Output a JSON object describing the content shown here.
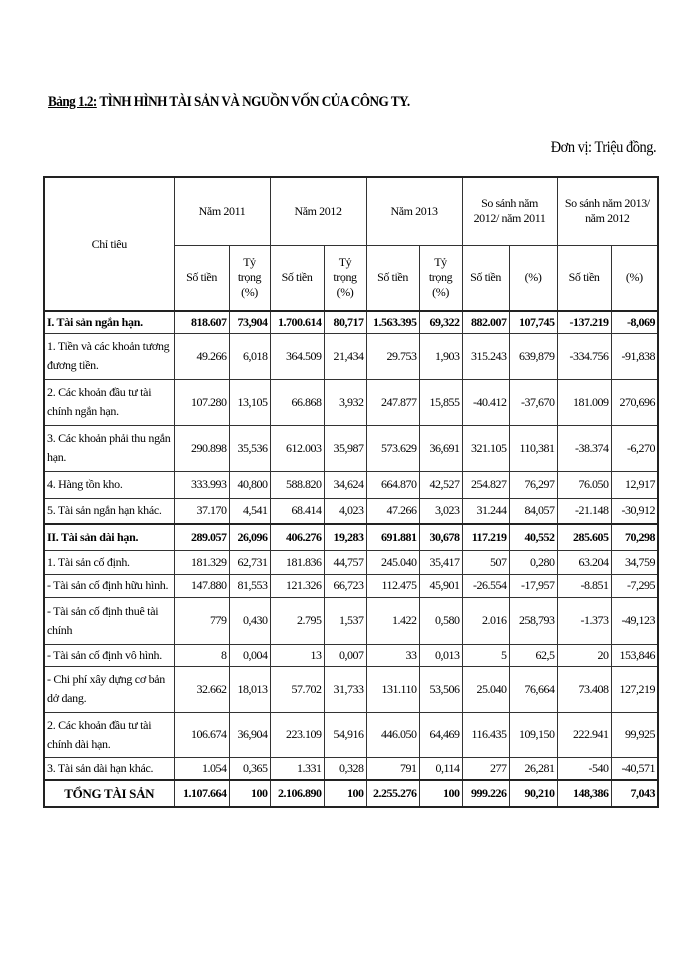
{
  "title": {
    "prefix": "Bảng 1.2:",
    "text": " TÌNH HÌNH TÀI SẢN VÀ NGUỒN VỐN CỦA CÔNG TY."
  },
  "unit": "Đơn vị: Triệu đồng.",
  "header": {
    "indicator": "Chỉ tiêu",
    "groups": [
      "Năm 2011",
      "Năm 2012",
      "Năm 2013",
      "So sánh năm 2012/ năm 2011",
      "So sánh năm 2013/ năm 2012"
    ],
    "amount": "Số tiền",
    "share": "Tỷ trọng (%)",
    "percent": "(%)"
  },
  "rows": [
    {
      "label": "I. Tài sản ngắn hạn.",
      "style": "bold",
      "values": [
        "818.607",
        "73,904",
        "1.700.614",
        "80,717",
        "1.563.395",
        "69,322",
        "882.007",
        "107,745",
        "-137.219",
        "-8,069"
      ]
    },
    {
      "label": "1. Tiền và các khoản tương đương tiền.",
      "style": "",
      "values": [
        "49.266",
        "6,018",
        "364.509",
        "21,434",
        "29.753",
        "1,903",
        "315.243",
        "639,879",
        "-334.756",
        "-91,838"
      ]
    },
    {
      "label": "2. Các khoản đầu tư tài chính ngắn hạn.",
      "style": "",
      "values": [
        "107.280",
        "13,105",
        "66.868",
        "3,932",
        "247.877",
        "15,855",
        "-40.412",
        "-37,670",
        "181.009",
        "270,696"
      ]
    },
    {
      "label": "3. Các khoản phải thu ngắn hạn.",
      "style": "",
      "values": [
        "290.898",
        "35,536",
        "612.003",
        "35,987",
        "573.629",
        "36,691",
        "321.105",
        "110,381",
        "-38.374",
        "-6,270"
      ]
    },
    {
      "label": "4. Hàng tồn kho.",
      "style": "",
      "values": [
        "333.993",
        "40,800",
        "588.820",
        "34,624",
        "664.870",
        "42,527",
        "254.827",
        "76,297",
        "76.050",
        "12,917"
      ]
    },
    {
      "label": "5. Tài sản ngắn hạn khác.",
      "style": "",
      "values": [
        "37.170",
        "4,541",
        "68.414",
        "4,023",
        "47.266",
        "3,023",
        "31.244",
        "84,057",
        "-21.148",
        "-30,912"
      ]
    },
    {
      "label": "II. Tài sản dài hạn.",
      "style": "bold",
      "values": [
        "289.057",
        "26,096",
        "406.276",
        "19,283",
        "691.881",
        "30,678",
        "117.219",
        "40,552",
        "285.605",
        "70,298"
      ]
    },
    {
      "label": "1. Tài sản cố định.",
      "style": "",
      "values": [
        "181.329",
        "62,731",
        "181.836",
        "44,757",
        "245.040",
        "35,417",
        "507",
        "0,280",
        "63.204",
        "34,759"
      ]
    },
    {
      "label": "- Tài sản cố định hữu hình.",
      "style": "",
      "values": [
        "147.880",
        "81,553",
        "121.326",
        "66,723",
        "112.475",
        "45,901",
        "-26.554",
        "-17,957",
        "-8.851",
        "-7,295"
      ]
    },
    {
      "label": "- Tài sản cố định thuê tài chính",
      "style": "",
      "values": [
        "779",
        "0,430",
        "2.795",
        "1,537",
        "1.422",
        "0,580",
        "2.016",
        "258,793",
        "-1.373",
        "-49,123"
      ]
    },
    {
      "label": "- Tài sản cố định vô hình.",
      "style": "",
      "values": [
        "8",
        "0,004",
        "13",
        "0,007",
        "33",
        "0,013",
        "5",
        "62,5",
        "20",
        "153,846"
      ]
    },
    {
      "label": "- Chi phí xây dựng cơ bản dở dang.",
      "style": "",
      "values": [
        "32.662",
        "18,013",
        "57.702",
        "31,733",
        "131.110",
        "53,506",
        "25.040",
        "76,664",
        "73.408",
        "127,219"
      ]
    },
    {
      "label": "2. Các khoản đầu tư tài chính dài hạn.",
      "style": "",
      "values": [
        "106.674",
        "36,904",
        "223.109",
        "54,916",
        "446.050",
        "64,469",
        "116.435",
        "109,150",
        "222.941",
        "99,925"
      ]
    },
    {
      "label": "3. Tài sản dài hạn khác.",
      "style": "",
      "values": [
        "1.054",
        "0,365",
        "1.331",
        "0,328",
        "791",
        "0,114",
        "277",
        "26,281",
        "-540",
        "-40,571"
      ]
    },
    {
      "label": "TỔNG TÀI SẢN",
      "style": "total",
      "values": [
        "1.107.664",
        "100",
        "2.106.890",
        "100",
        "2.255.276",
        "100",
        "999.226",
        "90,210",
        "148,386",
        "7,043"
      ]
    }
  ]
}
